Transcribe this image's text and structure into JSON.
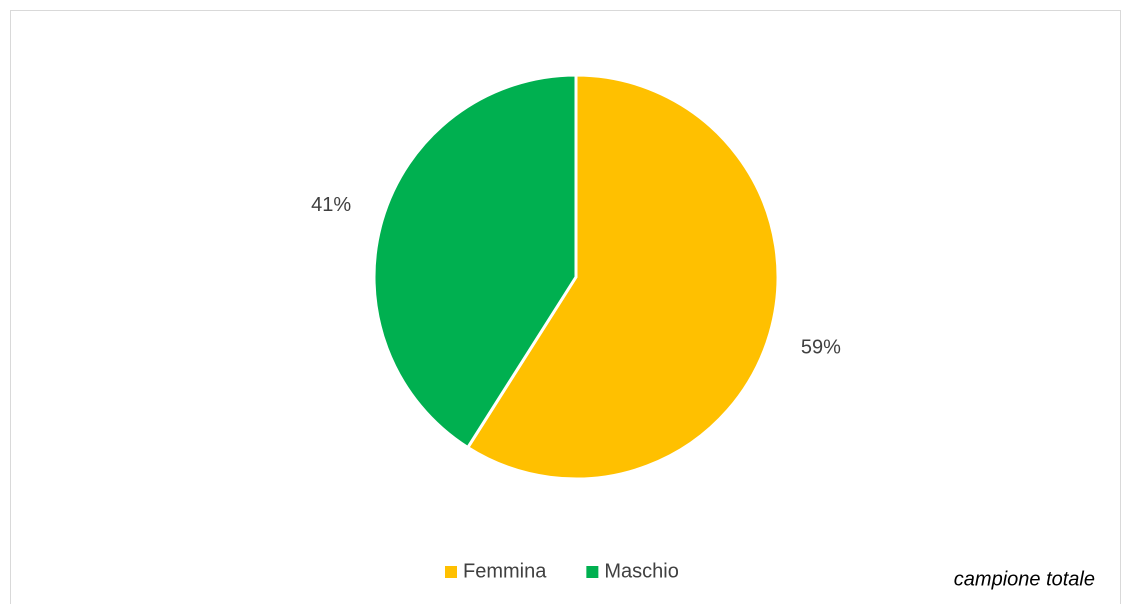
{
  "chart_data": {
    "type": "pie",
    "categories": [
      "Femmina",
      "Maschio"
    ],
    "values": [
      59,
      41
    ],
    "value_labels": [
      "59%",
      "41%"
    ],
    "colors": [
      "#FFC000",
      "#00B050"
    ],
    "legend": "bottom",
    "annotation": "campione totale"
  }
}
